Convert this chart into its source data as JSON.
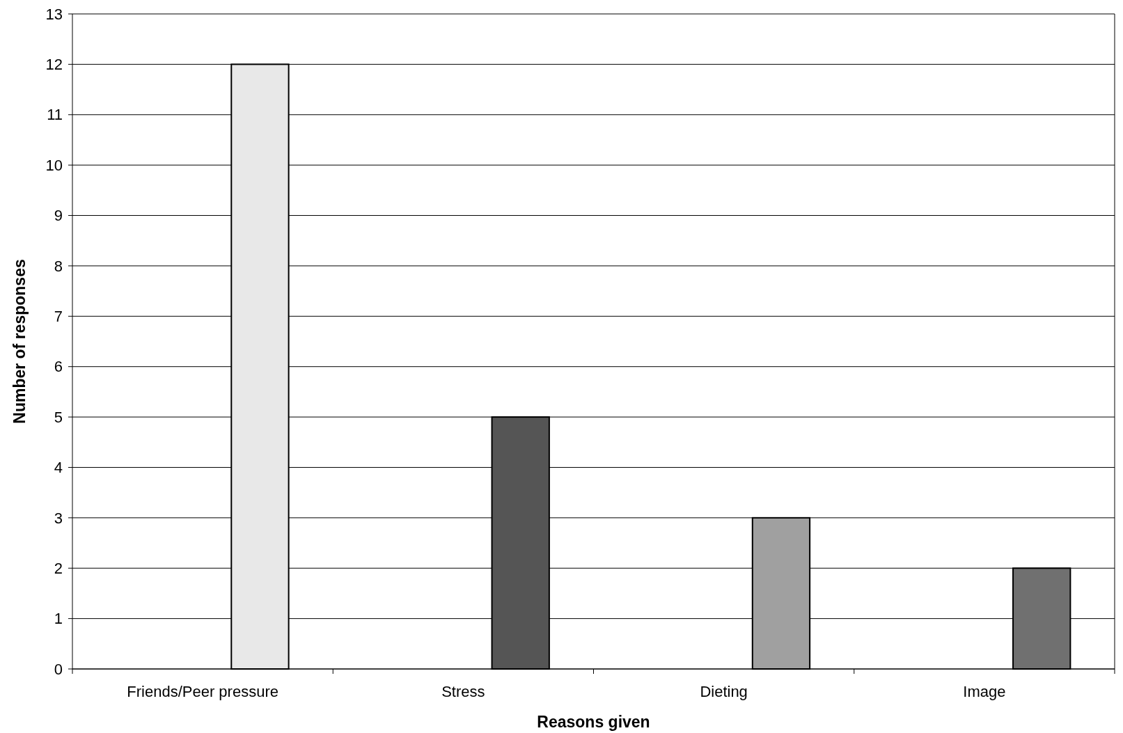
{
  "chart_data": {
    "type": "bar",
    "xlabel": "Reasons given",
    "ylabel": "Number of responses",
    "categories": [
      "Friends/Peer pressure",
      "Stress",
      "Dieting",
      "Image"
    ],
    "values": [
      12,
      5,
      3,
      2
    ],
    "colors": [
      "#e8e8e8",
      "#555555",
      "#a0a0a0",
      "#707070"
    ],
    "ylim": [
      0,
      13
    ],
    "yticks": [
      0,
      1,
      2,
      3,
      4,
      5,
      6,
      7,
      8,
      9,
      10,
      11,
      12,
      13
    ],
    "grid": "y"
  }
}
